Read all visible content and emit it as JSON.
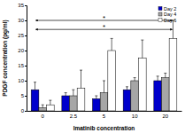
{
  "chart_data": {
    "type": "bar",
    "x_label": "Imatinib concentration",
    "y_label": "PDGF concentration (pg/ml)",
    "categories": [
      "0",
      "2.5",
      "5",
      "10",
      "20"
    ],
    "series": [
      {
        "name": "Day 2",
        "color": "#0000cc",
        "values": [
          7,
          5,
          4,
          7,
          10
        ],
        "errors": [
          2.5,
          1,
          1,
          1,
          1.5
        ]
      },
      {
        "name": "Day 4",
        "color": "#a6a6a6",
        "values": [
          1,
          5,
          6,
          10,
          11
        ],
        "errors": [
          1,
          2,
          4,
          1,
          1.5
        ]
      },
      {
        "name": "Day 6",
        "color": "#ffffff",
        "values": [
          2,
          7.5,
          20,
          17.5,
          24
        ],
        "errors": [
          1.5,
          6,
          4,
          6,
          6
        ]
      }
    ],
    "ylim": [
      0,
      35
    ],
    "yticks": [
      0,
      5,
      10,
      15,
      20,
      25,
      30,
      35
    ],
    "annotations": [
      {
        "text": "*",
        "y": 30
      },
      {
        "text": "*",
        "y": 27
      }
    ],
    "legend": "top-right"
  }
}
